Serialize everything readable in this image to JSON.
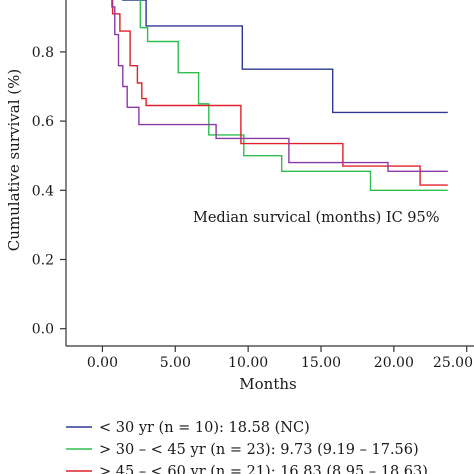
{
  "chart_data": {
    "type": "line",
    "step": true,
    "xlabel": "Months",
    "ylabel": "Cumulative survival (%)",
    "xlim": [
      -2.5,
      25.5
    ],
    "ylim": [
      -0.05,
      0.95
    ],
    "x_ticks": [
      0,
      5,
      10,
      15,
      20,
      25
    ],
    "x_tick_labels": [
      "0.00",
      "5.00",
      "10.00",
      "15.00",
      "20.00",
      "25.00"
    ],
    "y_ticks": [
      0.0,
      0.2,
      0.4,
      0.6,
      0.8
    ],
    "y_tick_labels": [
      "0.0",
      "0.2",
      "0.4",
      "0.6",
      "0.8"
    ],
    "grid": false,
    "annotation": "Median survical (months) IC 95%",
    "legend_placement": "bottom",
    "series": [
      {
        "name": "< 30 yr (n = 10): 18.58 (NC)",
        "color": "#2d3990",
        "points": [
          [
            0.5,
            1.0
          ],
          [
            1.4,
            1.0
          ],
          [
            1.4,
            0.95
          ],
          [
            3.0,
            0.95
          ],
          [
            3.0,
            0.875
          ],
          [
            9.6,
            0.875
          ],
          [
            9.6,
            0.75
          ],
          [
            15.8,
            0.75
          ],
          [
            15.8,
            0.625
          ],
          [
            23.7,
            0.625
          ]
        ]
      },
      {
        "name": "> 30 – < 45 yr (n = 23): 9.73 (9.19 – 17.56)",
        "color": "#2ebf4f",
        "points": [
          [
            0.5,
            1.0
          ],
          [
            1.6,
            1.0
          ],
          [
            1.6,
            0.96
          ],
          [
            2.6,
            0.96
          ],
          [
            2.6,
            0.87
          ],
          [
            3.1,
            0.87
          ],
          [
            3.1,
            0.83
          ],
          [
            5.2,
            0.83
          ],
          [
            5.2,
            0.74
          ],
          [
            6.6,
            0.74
          ],
          [
            6.6,
            0.65
          ],
          [
            7.3,
            0.65
          ],
          [
            7.3,
            0.56
          ],
          [
            9.7,
            0.56
          ],
          [
            9.7,
            0.5
          ],
          [
            12.3,
            0.5
          ],
          [
            12.3,
            0.455
          ],
          [
            18.4,
            0.455
          ],
          [
            18.4,
            0.4
          ],
          [
            23.7,
            0.4
          ]
        ]
      },
      {
        "name": "> 45 – < 60 yr (n = 21): 16.83 (8.95 – 18.63)",
        "color": "#e0202a",
        "points": [
          [
            0.5,
            1.0
          ],
          [
            0.7,
            1.0
          ],
          [
            0.7,
            0.91
          ],
          [
            1.2,
            0.91
          ],
          [
            1.2,
            0.86
          ],
          [
            1.9,
            0.86
          ],
          [
            1.9,
            0.76
          ],
          [
            2.4,
            0.76
          ],
          [
            2.4,
            0.71
          ],
          [
            2.7,
            0.71
          ],
          [
            2.7,
            0.665
          ],
          [
            3.0,
            0.665
          ],
          [
            3.0,
            0.645
          ],
          [
            9.5,
            0.645
          ],
          [
            9.5,
            0.535
          ],
          [
            10.2,
            0.535
          ],
          [
            10.2,
            0.535
          ],
          [
            16.5,
            0.535
          ],
          [
            16.5,
            0.47
          ],
          [
            21.8,
            0.47
          ],
          [
            21.8,
            0.415
          ],
          [
            23.7,
            0.415
          ]
        ]
      },
      {
        "name": "",
        "color": "#8b3aa8",
        "points": [
          [
            0.5,
            1.0
          ],
          [
            0.65,
            1.0
          ],
          [
            0.65,
            0.93
          ],
          [
            0.85,
            0.93
          ],
          [
            0.85,
            0.85
          ],
          [
            1.1,
            0.85
          ],
          [
            1.1,
            0.76
          ],
          [
            1.4,
            0.76
          ],
          [
            1.4,
            0.7
          ],
          [
            1.7,
            0.7
          ],
          [
            1.7,
            0.64
          ],
          [
            2.5,
            0.64
          ],
          [
            2.5,
            0.59
          ],
          [
            7.8,
            0.59
          ],
          [
            7.8,
            0.55
          ],
          [
            12.8,
            0.55
          ],
          [
            12.8,
            0.48
          ],
          [
            19.6,
            0.48
          ],
          [
            19.6,
            0.455
          ],
          [
            23.7,
            0.455
          ]
        ]
      }
    ]
  },
  "legend": {
    "entries": [
      {
        "text": "< 30 yr (n = 10): 18.58 (NC)",
        "color": "#2d3990"
      },
      {
        "text": "> 30 – < 45 yr (n = 23): 9.73 (9.19 – 17.56)",
        "color": "#2ebf4f"
      },
      {
        "text": "> 45 – < 60 yr (n = 21): 16.83 (8.95 – 18.63)",
        "color": "#e0202a"
      }
    ]
  }
}
